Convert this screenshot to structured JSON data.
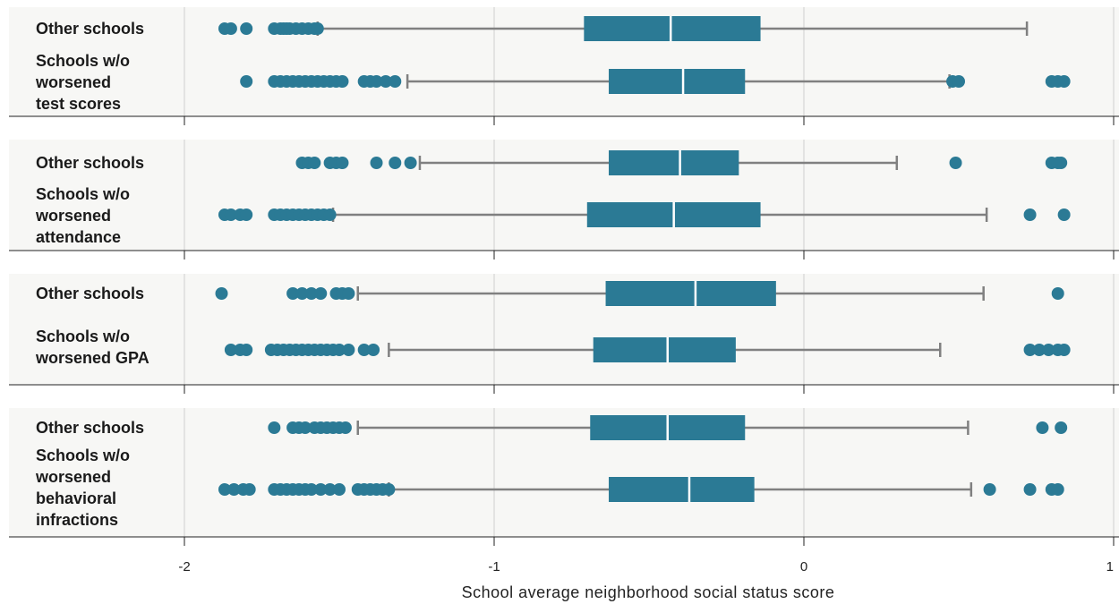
{
  "colors": {
    "box": "#2b7a95",
    "whisker": "#808080",
    "median": "#ffffff",
    "panel": "#f7f7f5"
  },
  "chart_data": {
    "type": "box",
    "title": "",
    "xlabel": "School average neighborhood social status score",
    "ylabel": "",
    "xlim": [
      -2.57,
      1.0
    ],
    "xticks": [
      -2,
      -1,
      0,
      1
    ],
    "xtick_labels": [
      "-2",
      "-1",
      "0",
      "1"
    ],
    "grid": true,
    "panels": [
      {
        "rows": [
          {
            "label_lines": [
              "Other schools"
            ],
            "whisker_low": -1.57,
            "q1": -0.71,
            "median": -0.43,
            "q3": -0.14,
            "whisker_high": 0.72,
            "outliers": [
              -1.87,
              -1.85,
              -1.8,
              -1.71,
              -1.69,
              -1.68,
              -1.67,
              -1.66,
              -1.64,
              -1.62,
              -1.6,
              -1.58,
              -1.57
            ]
          },
          {
            "label_lines": [
              "Schools w/o",
              "worsened",
              "test scores"
            ],
            "whisker_low": -1.28,
            "q1": -0.63,
            "median": -0.39,
            "q3": -0.19,
            "whisker_high": 0.47,
            "outliers": [
              -1.8,
              -1.71,
              -1.69,
              -1.67,
              -1.65,
              -1.63,
              -1.61,
              -1.59,
              -1.57,
              -1.55,
              -1.53,
              -1.51,
              -1.49,
              -1.42,
              -1.4,
              -1.38,
              -1.35,
              -1.32,
              0.48,
              0.5,
              0.8,
              0.82,
              0.84
            ]
          }
        ]
      },
      {
        "rows": [
          {
            "label_lines": [
              "Other schools"
            ],
            "whisker_low": -1.24,
            "q1": -0.63,
            "median": -0.4,
            "q3": -0.21,
            "whisker_high": 0.3,
            "outliers": [
              -1.62,
              -1.6,
              -1.58,
              -1.53,
              -1.51,
              -1.49,
              -1.38,
              -1.32,
              -1.27,
              0.49,
              0.8,
              0.82,
              0.83
            ]
          },
          {
            "label_lines": [
              "Schools w/o",
              "worsened",
              "attendance"
            ],
            "whisker_low": -1.52,
            "q1": -0.7,
            "median": -0.42,
            "q3": -0.14,
            "whisker_high": 0.59,
            "outliers": [
              -1.87,
              -1.85,
              -1.82,
              -1.8,
              -1.71,
              -1.69,
              -1.67,
              -1.65,
              -1.63,
              -1.61,
              -1.59,
              -1.57,
              -1.55,
              -1.53,
              0.73,
              0.84
            ]
          }
        ]
      },
      {
        "rows": [
          {
            "label_lines": [
              "Other schools"
            ],
            "whisker_low": -1.44,
            "q1": -0.64,
            "median": -0.35,
            "q3": -0.09,
            "whisker_high": 0.58,
            "outliers": [
              -1.88,
              -1.65,
              -1.62,
              -1.59,
              -1.56,
              -1.51,
              -1.49,
              -1.47,
              0.82
            ]
          },
          {
            "label_lines": [
              "Schools w/o",
              "worsened GPA"
            ],
            "whisker_low": -1.34,
            "q1": -0.68,
            "median": -0.44,
            "q3": -0.22,
            "whisker_high": 0.44,
            "outliers": [
              -1.85,
              -1.82,
              -1.8,
              -1.72,
              -1.7,
              -1.68,
              -1.66,
              -1.64,
              -1.62,
              -1.6,
              -1.58,
              -1.56,
              -1.54,
              -1.52,
              -1.5,
              -1.47,
              -1.42,
              -1.39,
              0.73,
              0.76,
              0.79,
              0.82,
              0.84
            ]
          }
        ]
      },
      {
        "rows": [
          {
            "label_lines": [
              "Other schools"
            ],
            "whisker_low": -1.44,
            "q1": -0.69,
            "median": -0.44,
            "q3": -0.19,
            "whisker_high": 0.53,
            "outliers": [
              -1.71,
              -1.65,
              -1.63,
              -1.61,
              -1.58,
              -1.56,
              -1.54,
              -1.52,
              -1.5,
              -1.48,
              0.77,
              0.83
            ]
          },
          {
            "label_lines": [
              "Schools w/o",
              "worsened",
              "behavioral",
              "infractions"
            ],
            "whisker_low": -1.34,
            "q1": -0.63,
            "median": -0.37,
            "q3": -0.16,
            "whisker_high": 0.54,
            "outliers": [
              -1.87,
              -1.84,
              -1.81,
              -1.79,
              -1.71,
              -1.69,
              -1.67,
              -1.65,
              -1.63,
              -1.61,
              -1.59,
              -1.56,
              -1.53,
              -1.5,
              -1.44,
              -1.42,
              -1.4,
              -1.38,
              -1.36,
              -1.34,
              0.6,
              0.73,
              0.8,
              0.82
            ]
          }
        ]
      }
    ]
  }
}
